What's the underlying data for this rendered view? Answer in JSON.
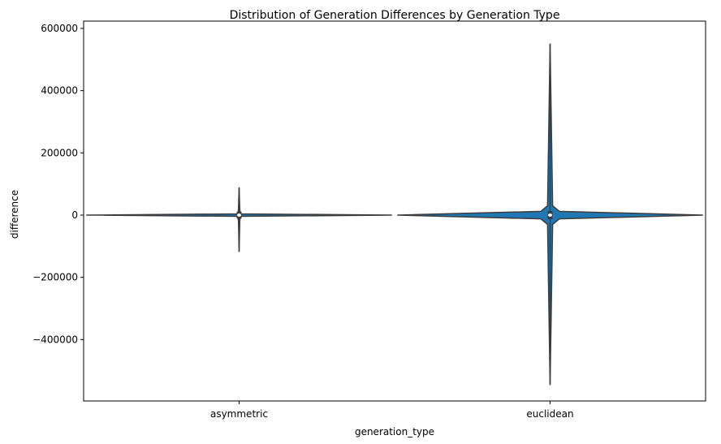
{
  "chart_data": {
    "type": "violin",
    "title": "Distribution of Generation Differences by Generation Type",
    "xlabel": "generation_type",
    "ylabel": "difference",
    "categories": [
      "asymmetric",
      "euclidean"
    ],
    "ylim": [
      -600000,
      620000
    ],
    "yticks": [
      -400000,
      -200000,
      0,
      200000,
      400000,
      600000
    ],
    "ytick_labels": [
      "−400000",
      "−200000",
      "0",
      "200000",
      "400000",
      "600000"
    ],
    "violin_color": "#1f77b4",
    "outline_color": "#3c3c3c",
    "series": [
      {
        "category": "asymmetric",
        "min": -117000,
        "max": 88000,
        "profile": [
          {
            "y": -117000,
            "w": 0.0
          },
          {
            "y": -20000,
            "w": 0.002
          },
          {
            "y": -4000,
            "w": 0.004
          },
          {
            "y": 0,
            "w": 0.49
          },
          {
            "y": 4000,
            "w": 0.004
          },
          {
            "y": 20000,
            "w": 0.002
          },
          {
            "y": 88000,
            "w": 0.0
          }
        ],
        "box": {
          "q1": -2000,
          "q3": 2000,
          "median": 0
        }
      },
      {
        "category": "euclidean",
        "min": -545000,
        "max": 550000,
        "profile": [
          {
            "y": -545000,
            "w": 0.0
          },
          {
            "y": -30000,
            "w": 0.008
          },
          {
            "y": -12000,
            "w": 0.03
          },
          {
            "y": 0,
            "w": 0.49
          },
          {
            "y": 12000,
            "w": 0.03
          },
          {
            "y": 30000,
            "w": 0.008
          },
          {
            "y": 550000,
            "w": 0.0
          }
        ],
        "box": {
          "q1": -4000,
          "q3": 4000,
          "median": 0
        }
      }
    ]
  }
}
